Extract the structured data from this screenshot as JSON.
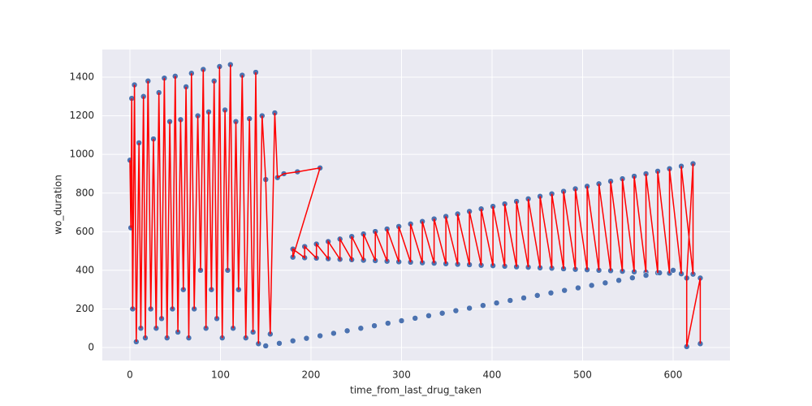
{
  "chart_data": {
    "type": "scatter",
    "xlabel": "time_from_last_drug_taken",
    "ylabel": "wo_duration",
    "xlim": [
      -30.5,
      662.8
    ],
    "ylim": [
      -67,
      1543
    ],
    "xticks": [
      0,
      100,
      200,
      300,
      400,
      500,
      600
    ],
    "yticks": [
      0,
      200,
      400,
      600,
      800,
      1000,
      1200,
      1400
    ],
    "grid": true,
    "background": "#eaeaf2",
    "series": [
      {
        "color": "#4c72b0",
        "line_color": "#ff0000",
        "x": [
          0,
          1,
          2,
          3,
          5,
          7,
          10,
          12,
          15,
          17,
          20,
          23,
          26,
          29,
          32,
          35,
          38,
          41,
          44,
          47,
          50,
          53,
          56,
          59,
          62,
          65,
          68,
          71,
          75,
          78,
          81,
          84,
          87,
          90,
          93,
          96,
          99,
          102,
          105,
          108,
          111,
          114,
          117,
          120,
          124,
          128,
          132,
          136,
          139,
          142,
          146,
          150,
          155,
          160,
          163,
          170,
          185,
          210,
          180,
          180,
          193,
          193,
          206,
          206,
          219,
          219,
          232,
          232,
          245,
          245,
          258,
          258,
          271,
          271,
          284,
          284,
          297,
          297,
          310,
          310,
          323,
          323,
          336,
          336,
          349,
          349,
          362,
          362,
          375,
          375,
          388,
          388,
          401,
          401,
          414,
          414,
          427,
          427,
          440,
          440,
          453,
          453,
          466,
          466,
          479,
          479,
          492,
          492,
          505,
          505,
          518,
          518,
          531,
          531,
          544,
          544,
          557,
          557,
          570,
          570,
          583,
          583,
          596,
          596,
          609,
          609,
          622,
          622,
          615,
          615,
          630,
          630
        ],
        "values": [
          970,
          620,
          1290,
          200,
          1360,
          30,
          1060,
          100,
          1300,
          50,
          1380,
          200,
          1080,
          100,
          1320,
          150,
          1395,
          50,
          1170,
          200,
          1405,
          80,
          1180,
          300,
          1350,
          50,
          1420,
          200,
          1200,
          400,
          1440,
          100,
          1220,
          300,
          1380,
          150,
          1455,
          50,
          1230,
          400,
          1465,
          100,
          1170,
          300,
          1410,
          50,
          1185,
          80,
          1425,
          20,
          1200,
          870,
          70,
          1215,
          880,
          900,
          910,
          930,
          468,
          510,
          465,
          523,
          463,
          536,
          460,
          549,
          457,
          562,
          455,
          575,
          452,
          588,
          450,
          601,
          447,
          614,
          444,
          627,
          442,
          640,
          439,
          653,
          437,
          666,
          434,
          679,
          431,
          692,
          429,
          705,
          426,
          718,
          424,
          731,
          421,
          744,
          418,
          757,
          416,
          770,
          413,
          783,
          411,
          796,
          408,
          809,
          405,
          822,
          403,
          835,
          400,
          848,
          398,
          861,
          395,
          874,
          392,
          887,
          390,
          900,
          387,
          913,
          385,
          926,
          382,
          939,
          380,
          952,
          360,
          5,
          360,
          20
        ]
      },
      {
        "color": "#4c72b0",
        "x": [
          150,
          165,
          180,
          195,
          210,
          225,
          240,
          255,
          270,
          285,
          300,
          315,
          330,
          345,
          360,
          375,
          390,
          405,
          420,
          435,
          450,
          465,
          480,
          495,
          510,
          525,
          540,
          555,
          570,
          585,
          600
        ],
        "values": [
          9,
          22,
          35,
          48,
          61,
          74,
          87,
          100,
          113,
          126,
          139,
          152,
          165,
          178,
          191,
          204,
          218,
          231,
          244,
          257,
          270,
          283,
          296,
          309,
          322,
          335,
          348,
          361,
          374,
          387,
          400
        ]
      }
    ]
  }
}
